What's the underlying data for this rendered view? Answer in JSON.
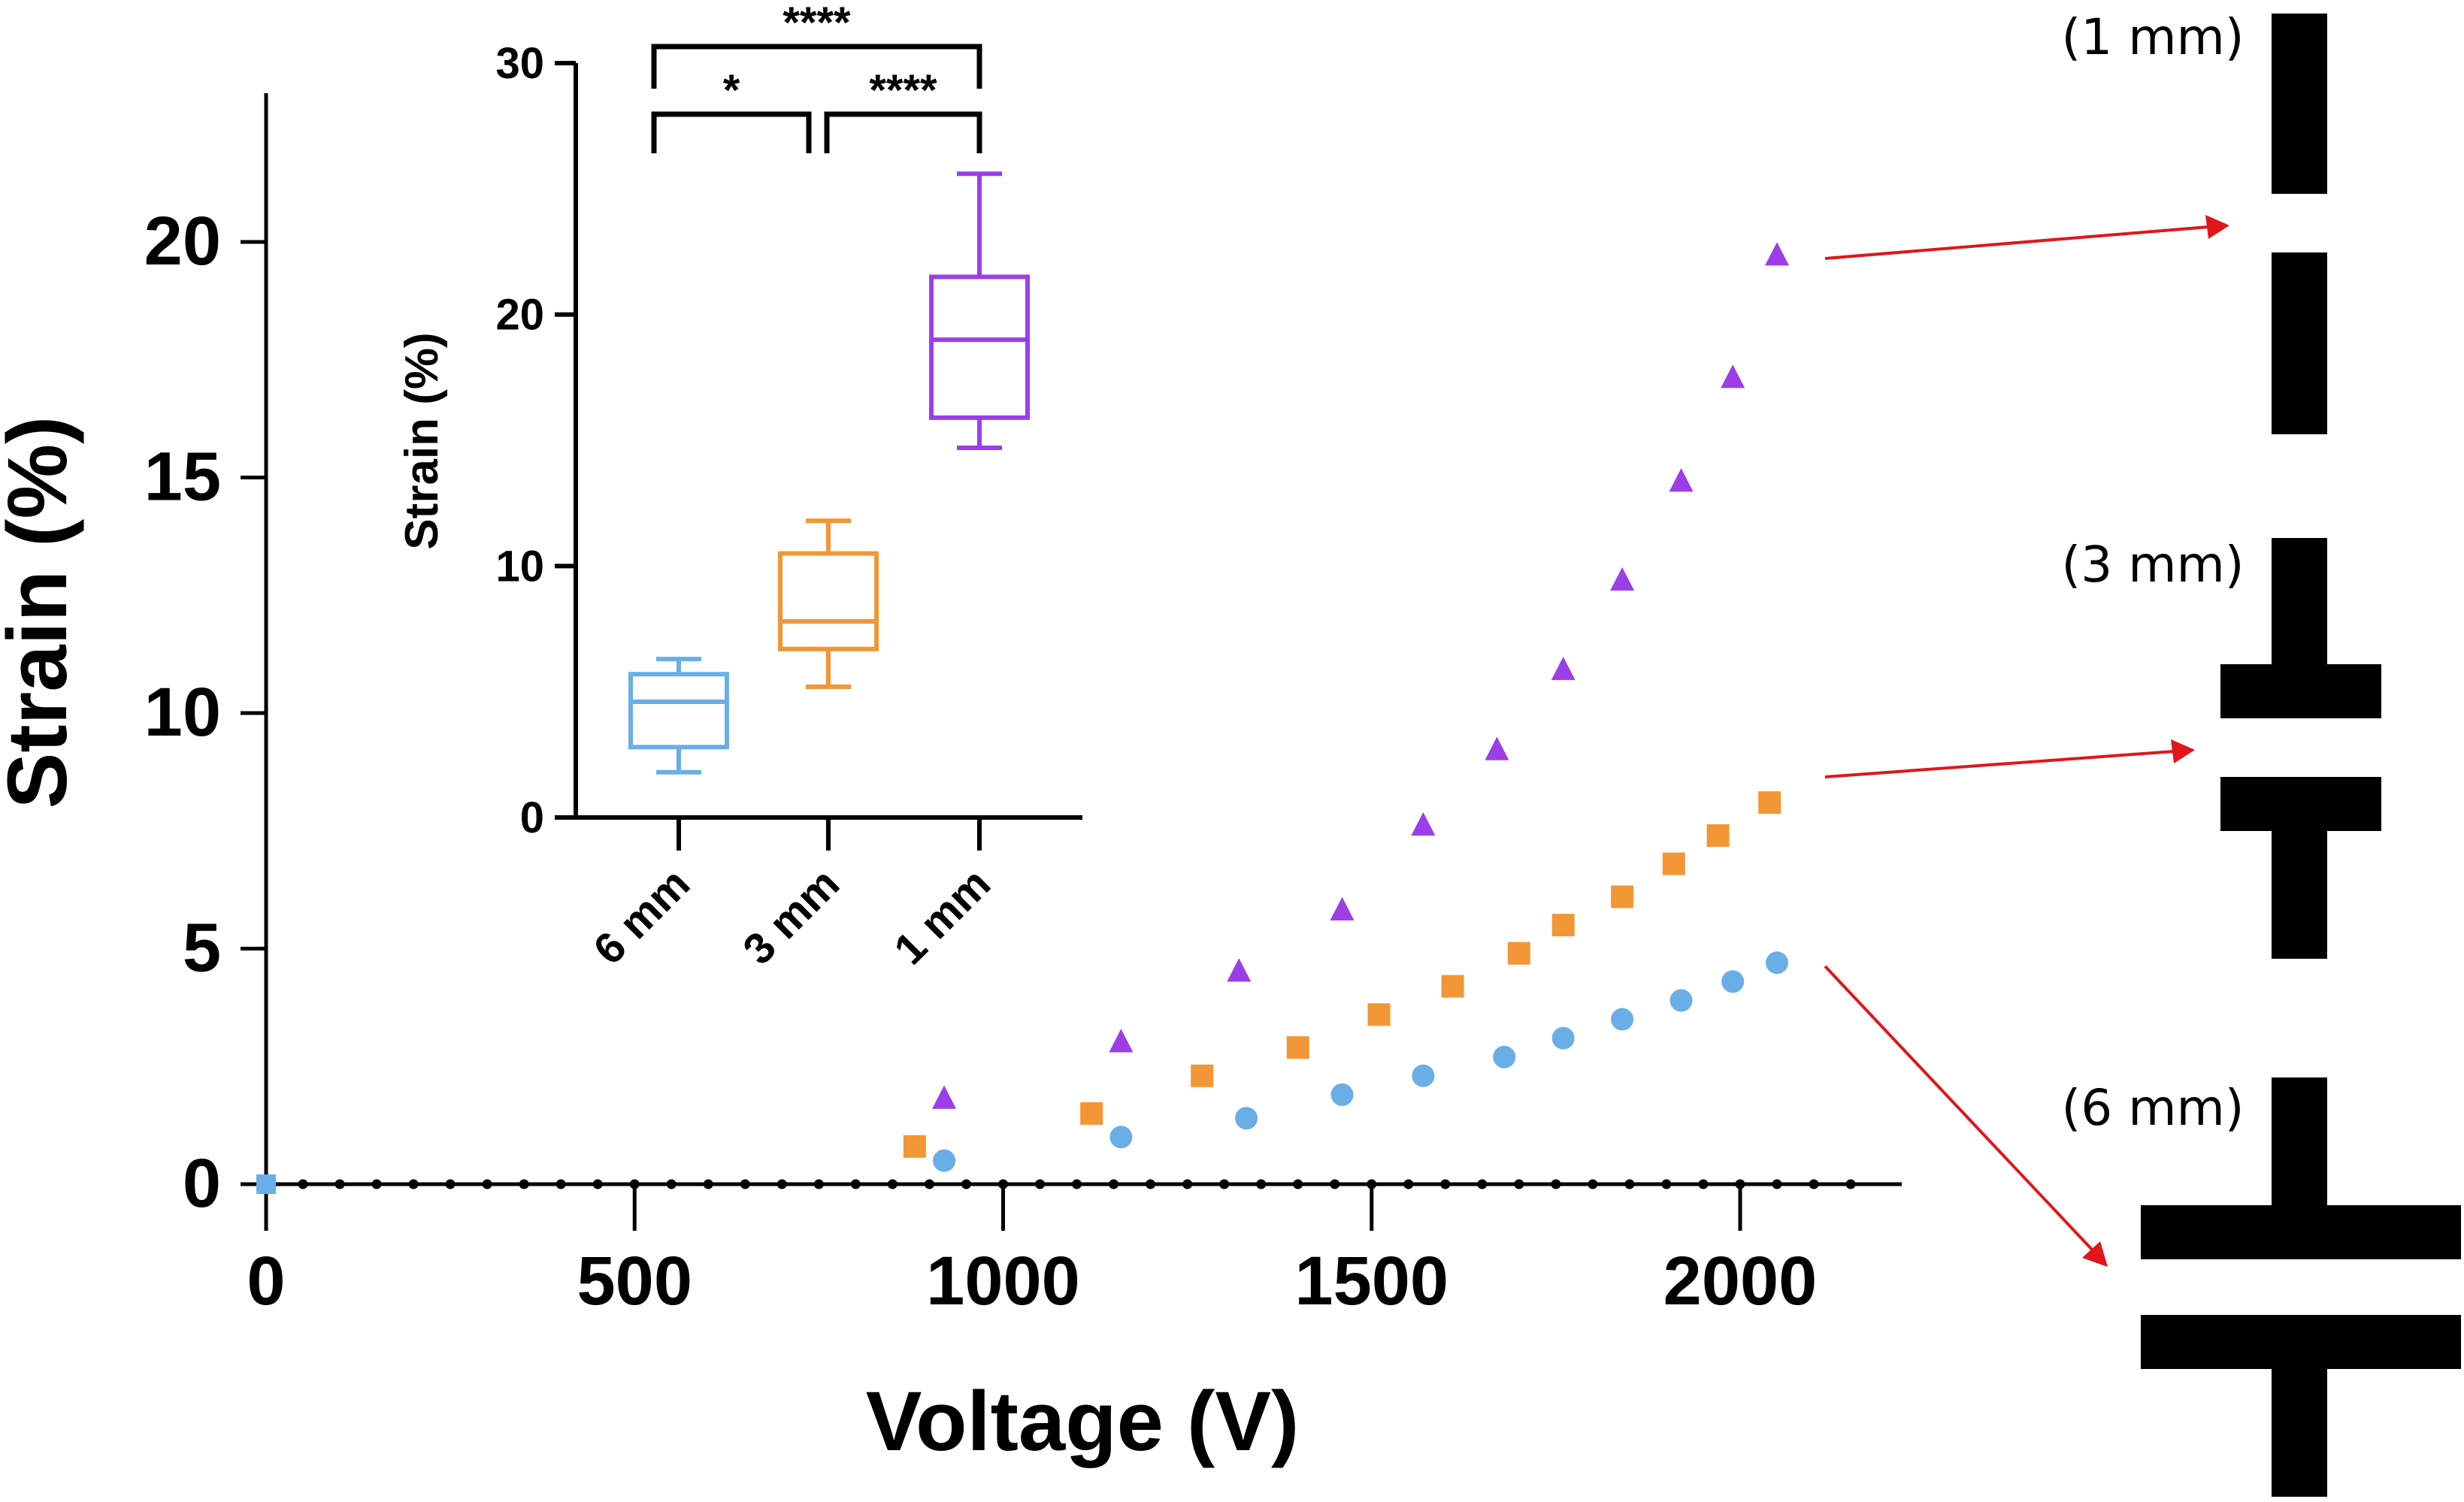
{
  "chart_data": [
    {
      "type": "scatter",
      "xlabel": "Voltage (V)",
      "ylabel": "Strain (%)",
      "xlim": [
        0,
        2200
      ],
      "ylim": [
        0,
        23
      ],
      "x_ticks": [
        0,
        500,
        1000,
        1500,
        2000
      ],
      "x_tick_labels": [
        "0",
        "500",
        "1000",
        "1500",
        "2000"
      ],
      "y_ticks": [
        0,
        5,
        10,
        15,
        20
      ],
      "y_tick_labels": [
        "0",
        "5",
        "10",
        "15",
        "20"
      ],
      "x_minor_dots": [
        0,
        50,
        100,
        150,
        200,
        250,
        300,
        350,
        400,
        450,
        500,
        550,
        600,
        650,
        700,
        750,
        800,
        850,
        900,
        950,
        1000,
        1050,
        1100,
        1150,
        1200,
        1250,
        1300,
        1350,
        1400,
        1450,
        1500,
        1550,
        1600,
        1650,
        1700,
        1750,
        1800,
        1850,
        1900,
        1950,
        2000,
        2050,
        2100,
        2150
      ],
      "origin_point": {
        "x": 0,
        "y": 0,
        "color": "#6aaee8"
      },
      "series": [
        {
          "name": "1 mm",
          "marker": "triangle",
          "color": "#9b3ee8",
          "points": [
            {
              "x": 920,
              "y": 1.8
            },
            {
              "x": 1160,
              "y": 3.0
            },
            {
              "x": 1320,
              "y": 4.5
            },
            {
              "x": 1460,
              "y": 5.8
            },
            {
              "x": 1570,
              "y": 7.6
            },
            {
              "x": 1670,
              "y": 9.2
            },
            {
              "x": 1760,
              "y": 10.9
            },
            {
              "x": 1840,
              "y": 12.8
            },
            {
              "x": 1920,
              "y": 14.9
            },
            {
              "x": 1990,
              "y": 17.1
            },
            {
              "x": 2050,
              "y": 19.7
            }
          ]
        },
        {
          "name": "3 mm",
          "marker": "square",
          "color": "#f39636",
          "points": [
            {
              "x": 880,
              "y": 0.8
            },
            {
              "x": 1120,
              "y": 1.5
            },
            {
              "x": 1270,
              "y": 2.3
            },
            {
              "x": 1400,
              "y": 2.9
            },
            {
              "x": 1510,
              "y": 3.6
            },
            {
              "x": 1610,
              "y": 4.2
            },
            {
              "x": 1700,
              "y": 4.9
            },
            {
              "x": 1760,
              "y": 5.5
            },
            {
              "x": 1840,
              "y": 6.1
            },
            {
              "x": 1910,
              "y": 6.8
            },
            {
              "x": 1970,
              "y": 7.4
            },
            {
              "x": 2040,
              "y": 8.1
            }
          ]
        },
        {
          "name": "6 mm",
          "marker": "circle",
          "color": "#6aaee8",
          "points": [
            {
              "x": 920,
              "y": 0.5
            },
            {
              "x": 1160,
              "y": 1.0
            },
            {
              "x": 1330,
              "y": 1.4
            },
            {
              "x": 1460,
              "y": 1.9
            },
            {
              "x": 1570,
              "y": 2.3
            },
            {
              "x": 1680,
              "y": 2.7
            },
            {
              "x": 1760,
              "y": 3.1
            },
            {
              "x": 1840,
              "y": 3.5
            },
            {
              "x": 1920,
              "y": 3.9
            },
            {
              "x": 1990,
              "y": 4.3
            },
            {
              "x": 2050,
              "y": 4.7
            }
          ]
        }
      ]
    },
    {
      "type": "box",
      "title": "",
      "xlabel": "",
      "ylabel": "Strain (%)",
      "ylim": [
        0,
        30
      ],
      "y_ticks": [
        0,
        10,
        20,
        30
      ],
      "y_tick_labels": [
        "0",
        "10",
        "20",
        "30"
      ],
      "categories": [
        "6 mm",
        "3 mm",
        "1 mm"
      ],
      "boxes": [
        {
          "category": "6 mm",
          "color": "#6aaee8",
          "min": 1.8,
          "q1": 2.8,
          "median": 4.6,
          "q3": 5.7,
          "max": 6.3
        },
        {
          "category": "3 mm",
          "color": "#f39636",
          "min": 5.2,
          "q1": 6.7,
          "median": 7.8,
          "q3": 10.5,
          "max": 11.8
        },
        {
          "category": "1 mm",
          "color": "#9b3ee8",
          "min": 14.7,
          "q1": 15.9,
          "median": 19.0,
          "q3": 21.5,
          "max": 25.6
        }
      ],
      "significance": [
        {
          "from": "6 mm",
          "to": "3 mm",
          "label": "*"
        },
        {
          "from": "3 mm",
          "to": "1 mm",
          "label": "****"
        },
        {
          "from": "6 mm",
          "to": "1 mm",
          "label": "****"
        }
      ]
    }
  ],
  "electrodes": [
    {
      "label": "(1 mm)"
    },
    {
      "label": "(3 mm)"
    },
    {
      "label": "(6 mm)"
    }
  ],
  "colors": {
    "axis": "#000000",
    "arrow": "#e0161b",
    "electrode": "#000000"
  }
}
